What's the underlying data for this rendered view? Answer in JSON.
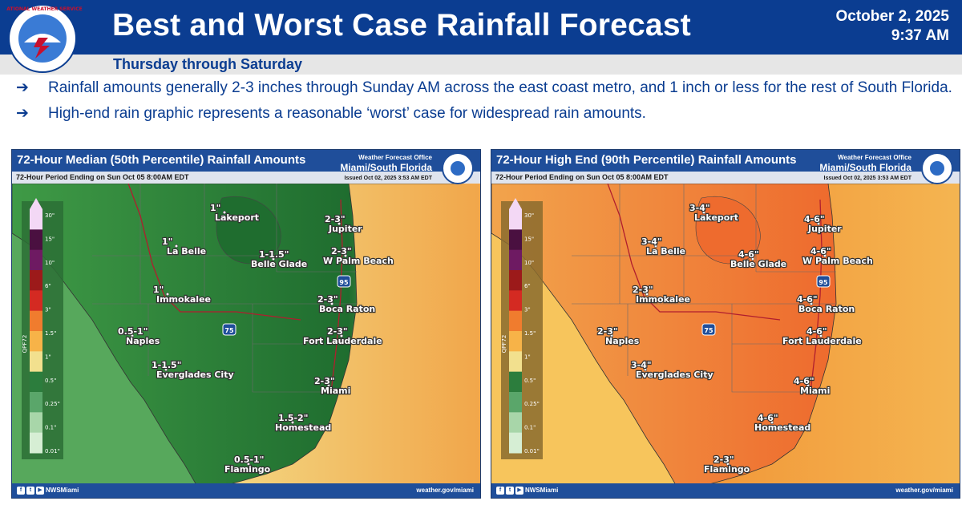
{
  "header": {
    "logo_text": "NATIONAL WEATHER SERVICE",
    "title": "Best and Worst Case Rainfall Forecast",
    "date": "October 2, 2025",
    "time": "9:37 AM",
    "subtitle": "Thursday through Saturday",
    "colors": {
      "banner": "#0b3d91",
      "subbar": "#e6e6e6"
    }
  },
  "bullets": [
    {
      "arrow": "➔",
      "text": "Rainfall amounts generally 2-3 inches through Sunday AM across the east coast metro, and 1 inch or less for the rest of South Florida."
    },
    {
      "arrow": "➔",
      "text": "High-end rain graphic represents a reasonable ‘worst’ case for widespread rain amounts."
    }
  ],
  "maps": [
    {
      "id": "median",
      "title": "72-Hour Median (50th Percentile) Rainfall Amounts",
      "period": "72-Hour Period Ending on Sun Oct 05 8:00AM EDT",
      "office_line1": "Weather Forecast Office",
      "office_line2": "Miami/South Florida",
      "issued": "Issued Oct 02, 2025 3:53 AM EDT",
      "legend_title": "QPF72",
      "interstate_75": "75",
      "interstate_95": "95",
      "social": "NWSMiami",
      "website": "weather.gov/miami",
      "cities": [
        {
          "name": "Lakeport",
          "amount": "1\""
        },
        {
          "name": "La Belle",
          "amount": "1\""
        },
        {
          "name": "Belle Glade",
          "amount": "1-1.5\""
        },
        {
          "name": "Jupiter",
          "amount": "2-3\""
        },
        {
          "name": "W Palm Beach",
          "amount": "2-3\""
        },
        {
          "name": "Immokalee",
          "amount": "1\""
        },
        {
          "name": "Boca Raton",
          "amount": "2-3\""
        },
        {
          "name": "Naples",
          "amount": "0.5-1\""
        },
        {
          "name": "Fort Lauderdale",
          "amount": "2-3\""
        },
        {
          "name": "Everglades City",
          "amount": "1-1.5\""
        },
        {
          "name": "Miami",
          "amount": "2-3\""
        },
        {
          "name": "Homestead",
          "amount": "1.5-2\""
        },
        {
          "name": "Flamingo",
          "amount": "0.5-1\""
        }
      ]
    },
    {
      "id": "high_end",
      "title": "72-Hour High End (90th Percentile) Rainfall Amounts",
      "period": "72-Hour Period Ending on Sun Oct 05 8:00AM EDT",
      "office_line1": "Weather Forecast Office",
      "office_line2": "Miami/South Florida",
      "issued": "Issued Oct 02, 2025 3:53 AM EDT",
      "legend_title": "QPF72",
      "interstate_75": "75",
      "interstate_95": "95",
      "social": "NWSMiami",
      "website": "weather.gov/miami",
      "cities": [
        {
          "name": "Lakeport",
          "amount": "3-4\""
        },
        {
          "name": "La Belle",
          "amount": "3-4\""
        },
        {
          "name": "Belle Glade",
          "amount": "4-6\""
        },
        {
          "name": "Jupiter",
          "amount": "4-6\""
        },
        {
          "name": "W Palm Beach",
          "amount": "4-6\""
        },
        {
          "name": "Immokalee",
          "amount": "2-3\""
        },
        {
          "name": "Boca Raton",
          "amount": "4-6\""
        },
        {
          "name": "Naples",
          "amount": "2-3\""
        },
        {
          "name": "Fort Lauderdale",
          "amount": "4-6\""
        },
        {
          "name": "Everglades City",
          "amount": "3-4\""
        },
        {
          "name": "Miami",
          "amount": "4-6\""
        },
        {
          "name": "Homestead",
          "amount": "4-6\""
        },
        {
          "name": "Flamingo",
          "amount": "2-3\""
        }
      ]
    }
  ],
  "legend_ticks": [
    "30\"",
    "15\"",
    "10\"",
    "6\"",
    "3\"",
    "1.5\"",
    "1\"",
    "0.5\"",
    "0.25\"",
    "0.1\"",
    "0.01\""
  ],
  "legend_colors": [
    "#f3d8f5",
    "#4a1040",
    "#6e1a62",
    "#9c1a1a",
    "#d42a22",
    "#f07c2e",
    "#f7b348",
    "#f2e08e",
    "#2c7d3d",
    "#5aa66a",
    "#a8d6a9",
    "#d6eed4"
  ]
}
